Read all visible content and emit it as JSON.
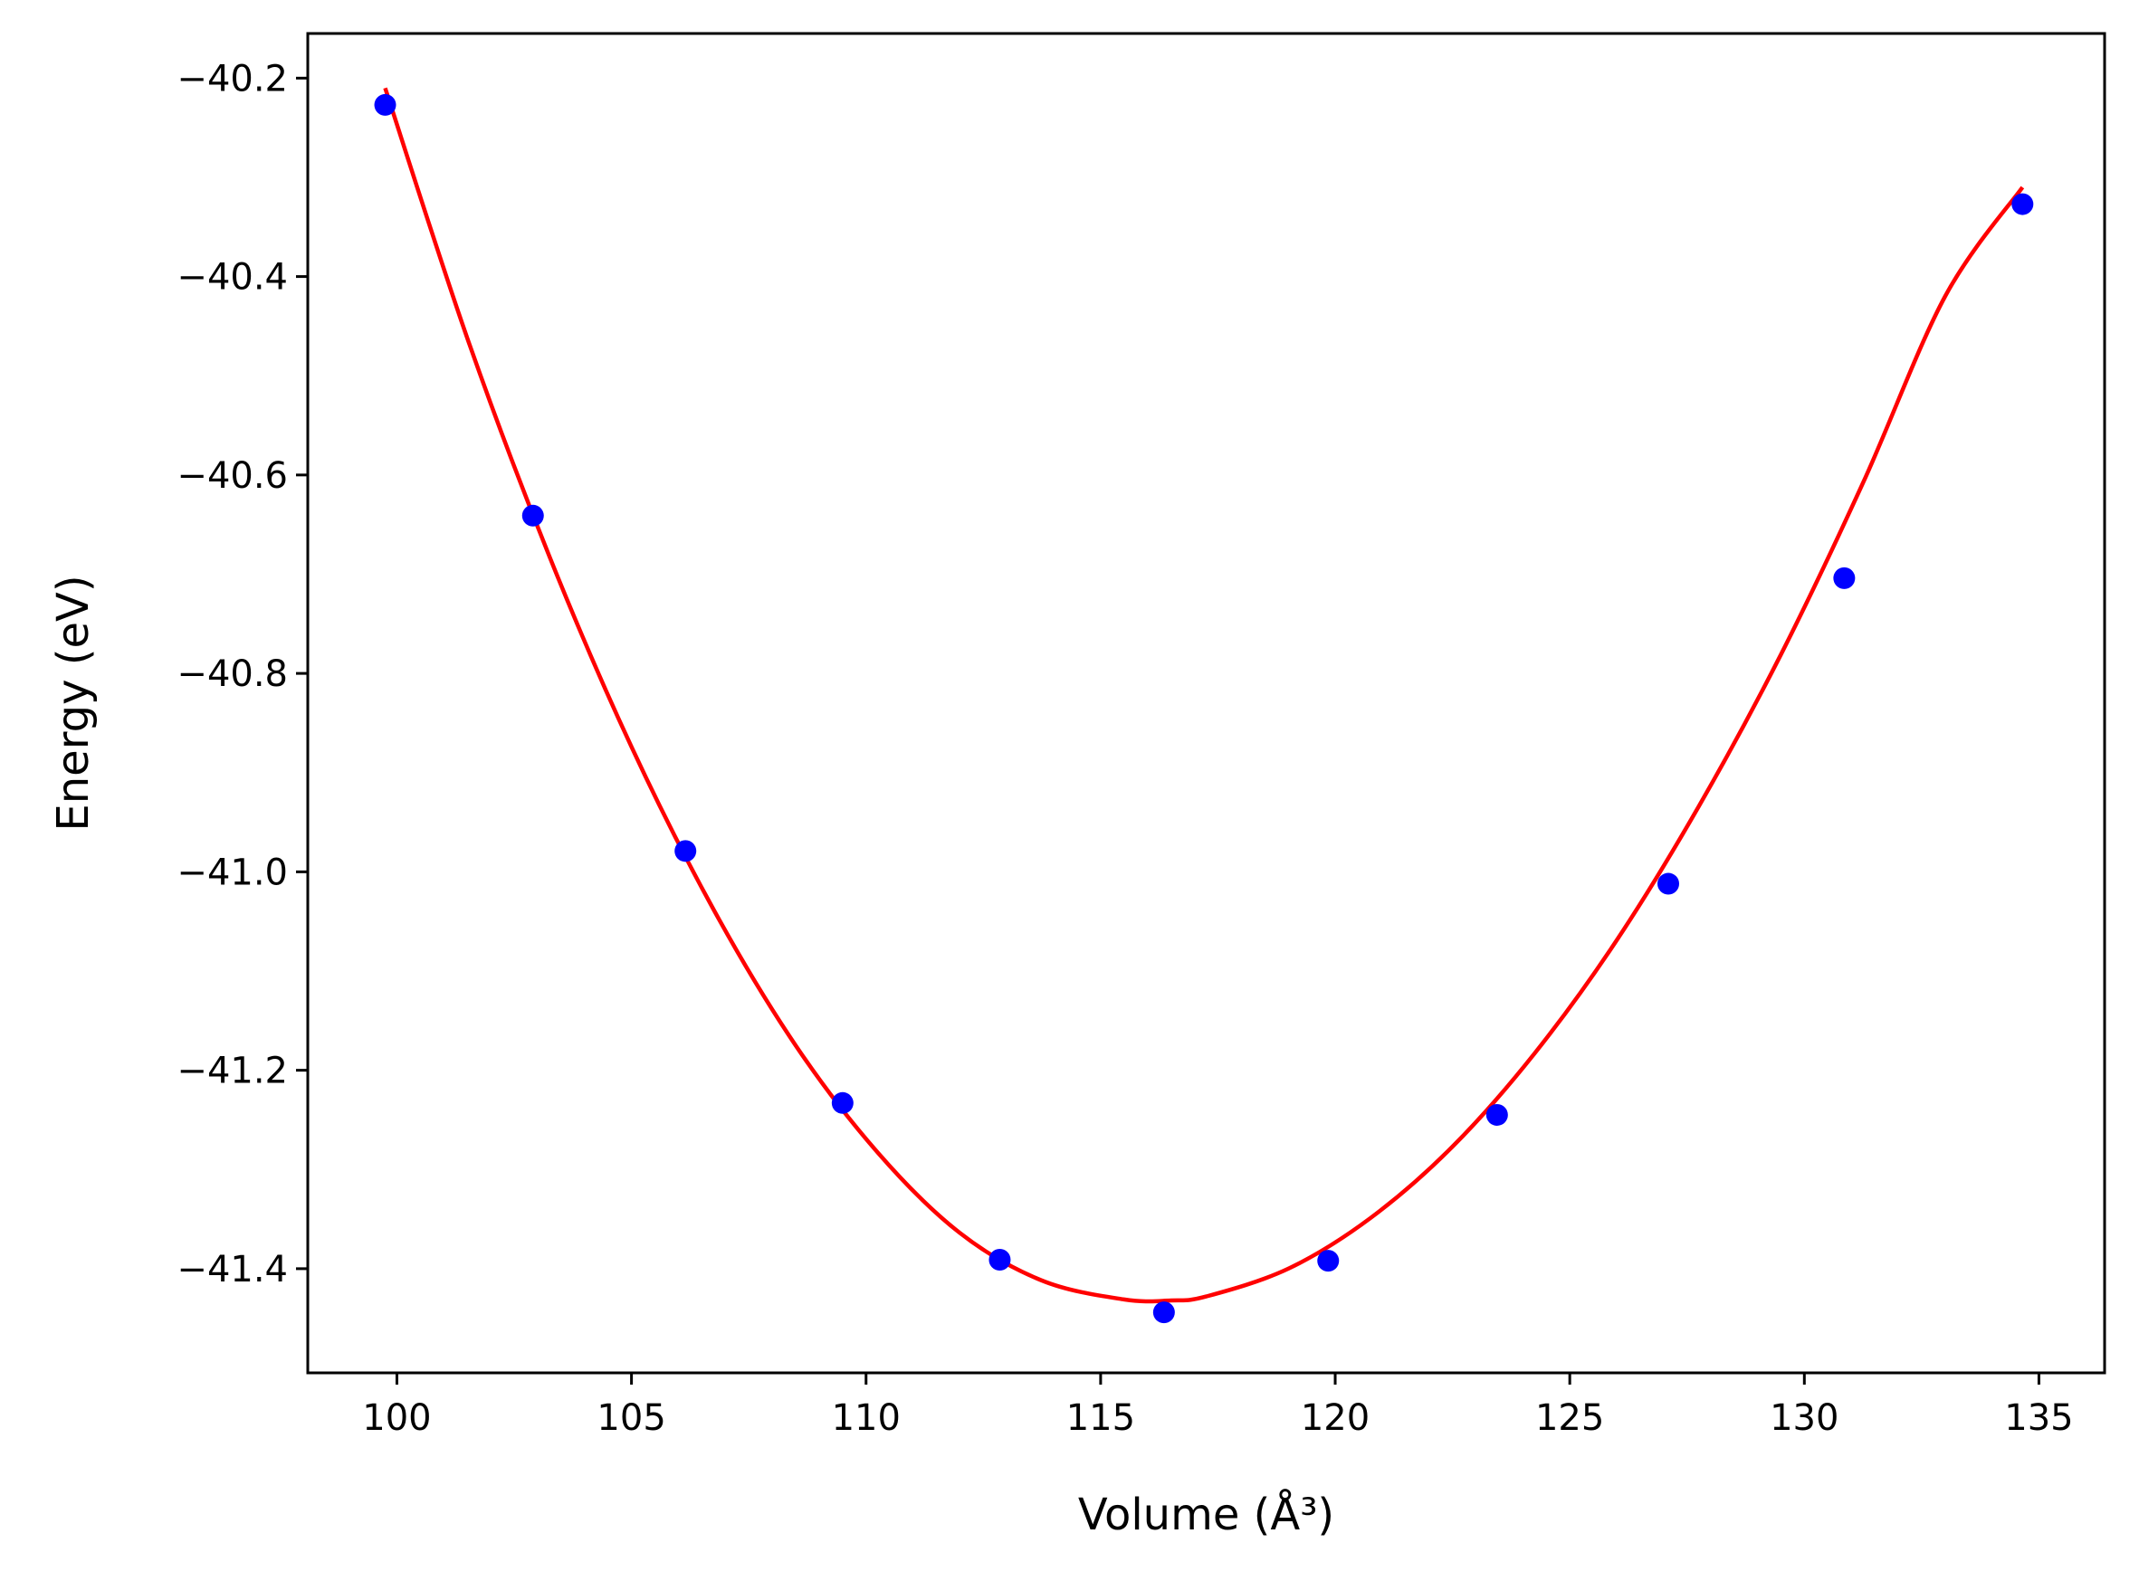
{
  "chart_data": {
    "type": "scatter",
    "title": "",
    "xlabel": "Volume (Å³)",
    "ylabel": "Energy (eV)",
    "xlim": [
      98.1,
      136.4
    ],
    "ylim": [
      -41.505,
      -40.155
    ],
    "x_ticks": [
      100,
      105,
      110,
      115,
      120,
      125,
      130,
      135
    ],
    "y_ticks": [
      -40.2,
      -40.4,
      -40.6,
      -40.8,
      -41.0,
      -41.2,
      -41.4
    ],
    "x_tick_labels": [
      "100",
      "105",
      "110",
      "115",
      "120",
      "125",
      "130",
      "135"
    ],
    "y_tick_labels": [
      "−40.2",
      "−40.4",
      "−40.6",
      "−40.8",
      "−41.0",
      "−41.2",
      "−41.4"
    ],
    "grid": false,
    "series": [
      {
        "kind": "points",
        "color": "#0000ff",
        "x": [
          99.75,
          102.9,
          106.15,
          109.5,
          112.85,
          116.35,
          119.85,
          123.45,
          127.1,
          130.85,
          134.65
        ],
        "y": [
          -40.227,
          -40.641,
          -40.979,
          -41.233,
          -41.391,
          -41.444,
          -41.392,
          -41.245,
          -41.012,
          -40.704,
          -40.327
        ]
      },
      {
        "kind": "fit-curve",
        "color": "#ff0000",
        "x": [
          99.75,
          101.5,
          103.25,
          105.0,
          106.75,
          108.5,
          110.25,
          112.0,
          113.75,
          115.5,
          116.5,
          117.25,
          119.0,
          120.75,
          122.5,
          124.25,
          126.0,
          127.75,
          129.5,
          131.25,
          133.0,
          134.65
        ],
        "y": [
          -40.21,
          -40.462,
          -40.682,
          -40.874,
          -41.038,
          -41.175,
          -41.283,
          -41.364,
          -41.412,
          -41.431,
          -41.432,
          -41.428,
          -41.4,
          -41.349,
          -41.277,
          -41.183,
          -41.069,
          -40.934,
          -40.781,
          -40.608,
          -40.42,
          -40.31
        ]
      }
    ]
  }
}
